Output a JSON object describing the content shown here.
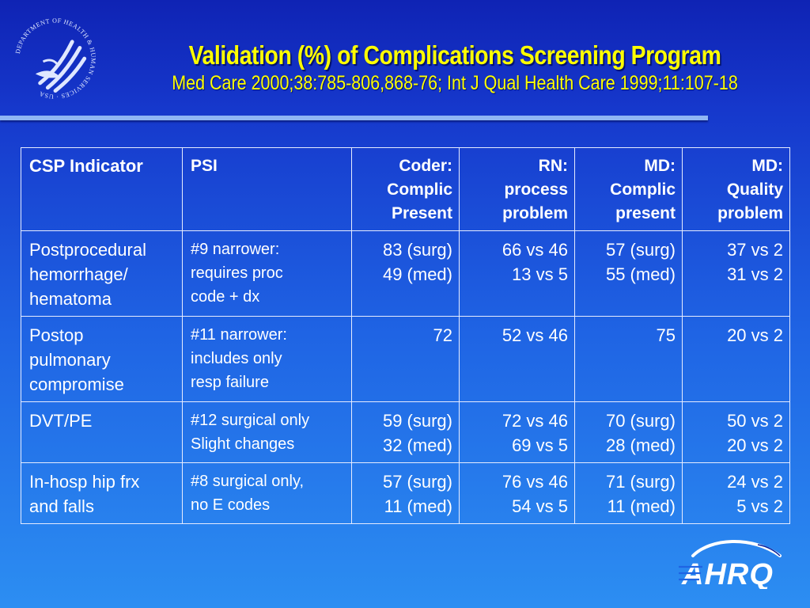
{
  "seal": {
    "text": "DEPARTMENT OF HEALTH & HUMAN SERVICES · USA"
  },
  "slide": {
    "title": "Validation (%) of Complications Screening Program",
    "subtitle": "Med Care 2000;38:785-806,868-76; Int J Qual Health Care 1999;11:107-18"
  },
  "table": {
    "headers": [
      [
        "CSP Indicator"
      ],
      [
        "PSI"
      ],
      [
        "Coder:",
        "Complic",
        "Present"
      ],
      [
        "RN:",
        "process",
        "problem"
      ],
      [
        "MD:",
        "Complic",
        "present"
      ],
      [
        "MD:",
        "Quality",
        "problem"
      ]
    ],
    "rows": [
      [
        [
          "Postprocedural",
          "hemorrhage/",
          "hematoma"
        ],
        [
          "#9 narrower:",
          "requires proc",
          "code + dx"
        ],
        [
          "83 (surg)",
          "49 (med)"
        ],
        [
          "66 vs 46",
          "13 vs 5"
        ],
        [
          "57 (surg)",
          "55 (med)"
        ],
        [
          "37 vs 2",
          "31 vs 2"
        ]
      ],
      [
        [
          "Postop",
          "pulmonary",
          "compromise"
        ],
        [
          "#11 narrower:",
          "includes only",
          "resp failure"
        ],
        [
          "72"
        ],
        [
          "52 vs 46"
        ],
        [
          "75"
        ],
        [
          "20 vs 2"
        ]
      ],
      [
        [
          "DVT/PE"
        ],
        [
          "#12 surgical only",
          "Slight changes"
        ],
        [
          "59 (surg)",
          "32 (med)"
        ],
        [
          "72 vs 46",
          "69 vs 5"
        ],
        [
          "70 (surg)",
          "28 (med)"
        ],
        [
          "50 vs 2",
          "20 vs 2"
        ]
      ],
      [
        [
          "In-hosp hip frx",
          "and falls"
        ],
        [
          "#8 surgical only,",
          "no E codes"
        ],
        [
          "57 (surg)",
          "11 (med)"
        ],
        [
          "76 vs 46",
          "54 vs 5"
        ],
        [
          "71 (surg)",
          "11 (med)"
        ],
        [
          "24 vs 2",
          "5 vs 2"
        ]
      ]
    ]
  },
  "logo": {
    "text": "AHRQ"
  },
  "colors": {
    "title": "#ffff00",
    "rule": "#8fb6f4",
    "text": "#ffffff"
  }
}
